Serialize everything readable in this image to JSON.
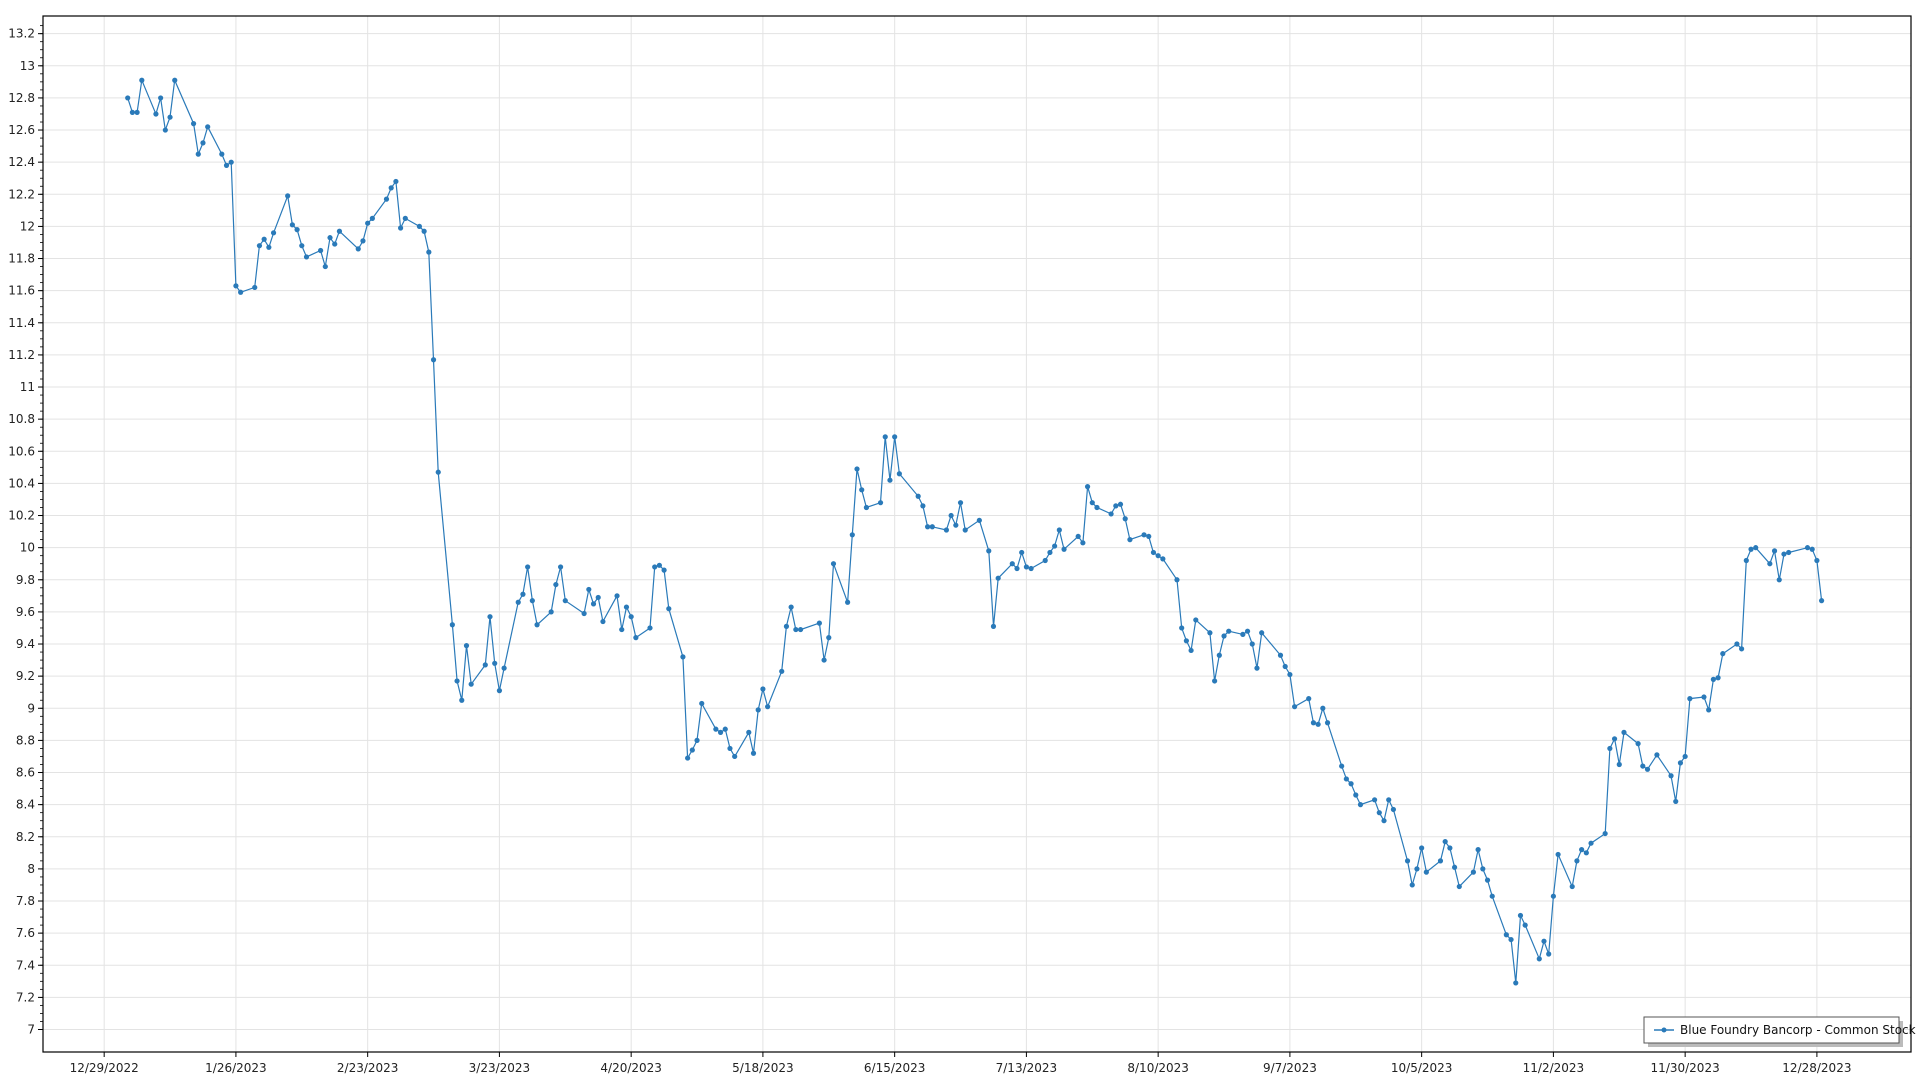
{
  "chart_data": {
    "type": "line",
    "title": "",
    "xlabel": "",
    "ylabel": "",
    "x_axis_type": "date",
    "xlim": [
      "12/16/2022",
      "1/17/2024"
    ],
    "ylim": [
      6.86,
      13.31
    ],
    "grid": true,
    "legend_position": "bottom-right",
    "line_color": "#2a7ab9",
    "markers": true,
    "x_tick_labels": [
      "12/29/2022",
      "1/26/2023",
      "2/23/2023",
      "3/23/2023",
      "4/20/2023",
      "5/18/2023",
      "6/15/2023",
      "7/13/2023",
      "8/10/2023",
      "9/7/2023",
      "10/5/2023",
      "11/2/2023",
      "11/30/2023",
      "12/28/2023"
    ],
    "y_tick_labels": [
      "7",
      "7.2",
      "7.4",
      "7.6",
      "7.8",
      "8",
      "8.2",
      "8.4",
      "8.6",
      "8.8",
      "9",
      "9.2",
      "9.4",
      "9.6",
      "9.8",
      "10",
      "10.2",
      "10.4",
      "10.6",
      "10.8",
      "11",
      "11.2",
      "11.4",
      "11.6",
      "11.8",
      "12",
      "12.2",
      "12.4",
      "12.6",
      "12.8",
      "13",
      "13.2"
    ],
    "series": [
      {
        "name": "Blue Foundry Bancorp - Common Stock",
        "x": [
          "1/3/2023",
          "1/4/2023",
          "1/5/2023",
          "1/6/2023",
          "1/9/2023",
          "1/10/2023",
          "1/11/2023",
          "1/12/2023",
          "1/13/2023",
          "1/17/2023",
          "1/18/2023",
          "1/19/2023",
          "1/20/2023",
          "1/23/2023",
          "1/24/2023",
          "1/25/2023",
          "1/26/2023",
          "1/27/2023",
          "1/30/2023",
          "1/31/2023",
          "2/1/2023",
          "2/2/2023",
          "2/3/2023",
          "2/6/2023",
          "2/7/2023",
          "2/8/2023",
          "2/9/2023",
          "2/10/2023",
          "2/13/2023",
          "2/14/2023",
          "2/15/2023",
          "2/16/2023",
          "2/17/2023",
          "2/21/2023",
          "2/22/2023",
          "2/23/2023",
          "2/24/2023",
          "2/27/2023",
          "2/28/2023",
          "3/1/2023",
          "3/2/2023",
          "3/3/2023",
          "3/6/2023",
          "3/7/2023",
          "3/8/2023",
          "3/9/2023",
          "3/10/2023",
          "3/13/2023",
          "3/14/2023",
          "3/15/2023",
          "3/16/2023",
          "3/17/2023",
          "3/20/2023",
          "3/21/2023",
          "3/22/2023",
          "3/23/2023",
          "3/24/2023",
          "3/27/2023",
          "3/28/2023",
          "3/29/2023",
          "3/30/2023",
          "3/31/2023",
          "4/3/2023",
          "4/4/2023",
          "4/5/2023",
          "4/6/2023",
          "4/10/2023",
          "4/11/2023",
          "4/12/2023",
          "4/13/2023",
          "4/14/2023",
          "4/17/2023",
          "4/18/2023",
          "4/19/2023",
          "4/20/2023",
          "4/21/2023",
          "4/24/2023",
          "4/25/2023",
          "4/26/2023",
          "4/27/2023",
          "4/28/2023",
          "5/1/2023",
          "5/2/2023",
          "5/3/2023",
          "5/4/2023",
          "5/5/2023",
          "5/8/2023",
          "5/9/2023",
          "5/10/2023",
          "5/11/2023",
          "5/12/2023",
          "5/15/2023",
          "5/16/2023",
          "5/17/2023",
          "5/18/2023",
          "5/19/2023",
          "5/22/2023",
          "5/23/2023",
          "5/24/2023",
          "5/25/2023",
          "5/26/2023",
          "5/30/2023",
          "5/31/2023",
          "6/1/2023",
          "6/2/2023",
          "6/5/2023",
          "6/6/2023",
          "6/7/2023",
          "6/8/2023",
          "6/9/2023",
          "6/12/2023",
          "6/13/2023",
          "6/14/2023",
          "6/15/2023",
          "6/16/2023",
          "6/20/2023",
          "6/21/2023",
          "6/22/2023",
          "6/23/2023",
          "6/26/2023",
          "6/27/2023",
          "6/28/2023",
          "6/29/2023",
          "6/30/2023",
          "7/3/2023",
          "7/5/2023",
          "7/6/2023",
          "7/7/2023",
          "7/10/2023",
          "7/11/2023",
          "7/12/2023",
          "7/13/2023",
          "7/14/2023",
          "7/17/2023",
          "7/18/2023",
          "7/19/2023",
          "7/20/2023",
          "7/21/2023",
          "7/24/2023",
          "7/25/2023",
          "7/26/2023",
          "7/27/2023",
          "7/28/2023",
          "7/31/2023",
          "8/1/2023",
          "8/2/2023",
          "8/3/2023",
          "8/4/2023",
          "8/7/2023",
          "8/8/2023",
          "8/9/2023",
          "8/10/2023",
          "8/11/2023",
          "8/14/2023",
          "8/15/2023",
          "8/16/2023",
          "8/17/2023",
          "8/18/2023",
          "8/21/2023",
          "8/22/2023",
          "8/23/2023",
          "8/24/2023",
          "8/25/2023",
          "8/28/2023",
          "8/29/2023",
          "8/30/2023",
          "8/31/2023",
          "9/1/2023",
          "9/5/2023",
          "9/6/2023",
          "9/7/2023",
          "9/8/2023",
          "9/11/2023",
          "9/12/2023",
          "9/13/2023",
          "9/14/2023",
          "9/15/2023",
          "9/18/2023",
          "9/19/2023",
          "9/20/2023",
          "9/21/2023",
          "9/22/2023",
          "9/25/2023",
          "9/26/2023",
          "9/27/2023",
          "9/28/2023",
          "9/29/2023",
          "10/2/2023",
          "10/3/2023",
          "10/4/2023",
          "10/5/2023",
          "10/6/2023",
          "10/9/2023",
          "10/10/2023",
          "10/11/2023",
          "10/12/2023",
          "10/13/2023",
          "10/16/2023",
          "10/17/2023",
          "10/18/2023",
          "10/19/2023",
          "10/20/2023",
          "10/23/2023",
          "10/24/2023",
          "10/25/2023",
          "10/26/2023",
          "10/27/2023",
          "10/30/2023",
          "10/31/2023",
          "11/1/2023",
          "11/2/2023",
          "11/3/2023",
          "11/6/2023",
          "11/7/2023",
          "11/8/2023",
          "11/9/2023",
          "11/10/2023",
          "11/13/2023",
          "11/14/2023",
          "11/15/2023",
          "11/16/2023",
          "11/17/2023",
          "11/20/2023",
          "11/21/2023",
          "11/22/2023",
          "11/24/2023",
          "11/27/2023",
          "11/28/2023",
          "11/29/2023",
          "11/30/2023",
          "12/1/2023",
          "12/4/2023",
          "12/5/2023",
          "12/6/2023",
          "12/7/2023",
          "12/8/2023",
          "12/11/2023",
          "12/12/2023",
          "12/13/2023",
          "12/14/2023",
          "12/15/2023",
          "12/18/2023",
          "12/19/2023",
          "12/20/2023",
          "12/21/2023",
          "12/22/2023",
          "12/26/2023",
          "12/27/2023",
          "12/28/2023",
          "12/29/2023"
        ],
        "y": [
          12.8,
          12.71,
          12.71,
          12.91,
          12.7,
          12.8,
          12.6,
          12.68,
          12.91,
          12.64,
          12.45,
          12.52,
          12.62,
          12.45,
          12.38,
          12.4,
          11.63,
          11.59,
          11.62,
          11.88,
          11.92,
          11.87,
          11.96,
          12.19,
          12.01,
          11.98,
          11.88,
          11.81,
          11.85,
          11.75,
          11.93,
          11.89,
          11.97,
          11.86,
          11.91,
          12.02,
          12.05,
          12.17,
          12.24,
          12.28,
          11.99,
          12.05,
          12.0,
          11.97,
          11.84,
          11.17,
          10.47,
          9.52,
          9.17,
          9.05,
          9.39,
          9.15,
          9.27,
          9.57,
          9.28,
          9.11,
          9.25,
          9.66,
          9.71,
          9.88,
          9.67,
          9.52,
          9.6,
          9.77,
          9.88,
          9.67,
          9.59,
          9.74,
          9.65,
          9.69,
          9.54,
          9.7,
          9.49,
          9.63,
          9.57,
          9.44,
          9.5,
          9.88,
          9.89,
          9.86,
          9.62,
          9.32,
          8.69,
          8.74,
          8.8,
          9.03,
          8.87,
          8.85,
          8.87,
          8.75,
          8.7,
          8.85,
          8.72,
          8.99,
          9.12,
          9.01,
          9.23,
          9.51,
          9.63,
          9.49,
          9.49,
          9.53,
          9.3,
          9.44,
          9.9,
          9.66,
          10.08,
          10.49,
          10.36,
          10.25,
          10.28,
          10.69,
          10.42,
          10.69,
          10.46,
          10.32,
          10.26,
          10.13,
          10.13,
          10.11,
          10.2,
          10.14,
          10.28,
          10.11,
          10.17,
          9.98,
          9.51,
          9.81,
          9.9,
          9.87,
          9.97,
          9.88,
          9.87,
          9.92,
          9.97,
          10.01,
          10.11,
          9.99,
          10.07,
          10.03,
          10.38,
          10.28,
          10.25,
          10.21,
          10.26,
          10.27,
          10.18,
          10.05,
          10.08,
          10.07,
          9.97,
          9.95,
          9.93,
          9.8,
          9.5,
          9.42,
          9.36,
          9.55,
          9.47,
          9.17,
          9.33,
          9.45,
          9.48,
          9.46,
          9.48,
          9.4,
          9.25,
          9.47,
          9.33,
          9.26,
          9.21,
          9.01,
          9.06,
          8.91,
          8.9,
          9.0,
          8.91,
          8.64,
          8.56,
          8.53,
          8.46,
          8.4,
          8.43,
          8.35,
          8.3,
          8.43,
          8.37,
          8.05,
          7.9,
          8.0,
          8.13,
          7.98,
          8.05,
          8.17,
          8.13,
          8.01,
          7.89,
          7.98,
          8.12,
          8.0,
          7.93,
          7.83,
          7.59,
          7.56,
          7.29,
          7.71,
          7.65,
          7.44,
          7.55,
          7.47,
          7.83,
          8.09,
          7.89,
          8.05,
          8.12,
          8.1,
          8.16,
          8.22,
          8.75,
          8.81,
          8.65,
          8.85,
          8.78,
          8.64,
          8.62,
          8.71,
          8.58,
          8.42,
          8.66,
          8.7,
          9.06,
          9.07,
          8.99,
          9.18,
          9.19,
          9.34,
          9.4,
          9.37,
          9.92,
          9.99,
          10.0,
          9.9,
          9.98,
          9.8,
          9.96,
          9.97,
          10.0,
          9.99,
          9.92,
          9.67
        ]
      }
    ]
  }
}
